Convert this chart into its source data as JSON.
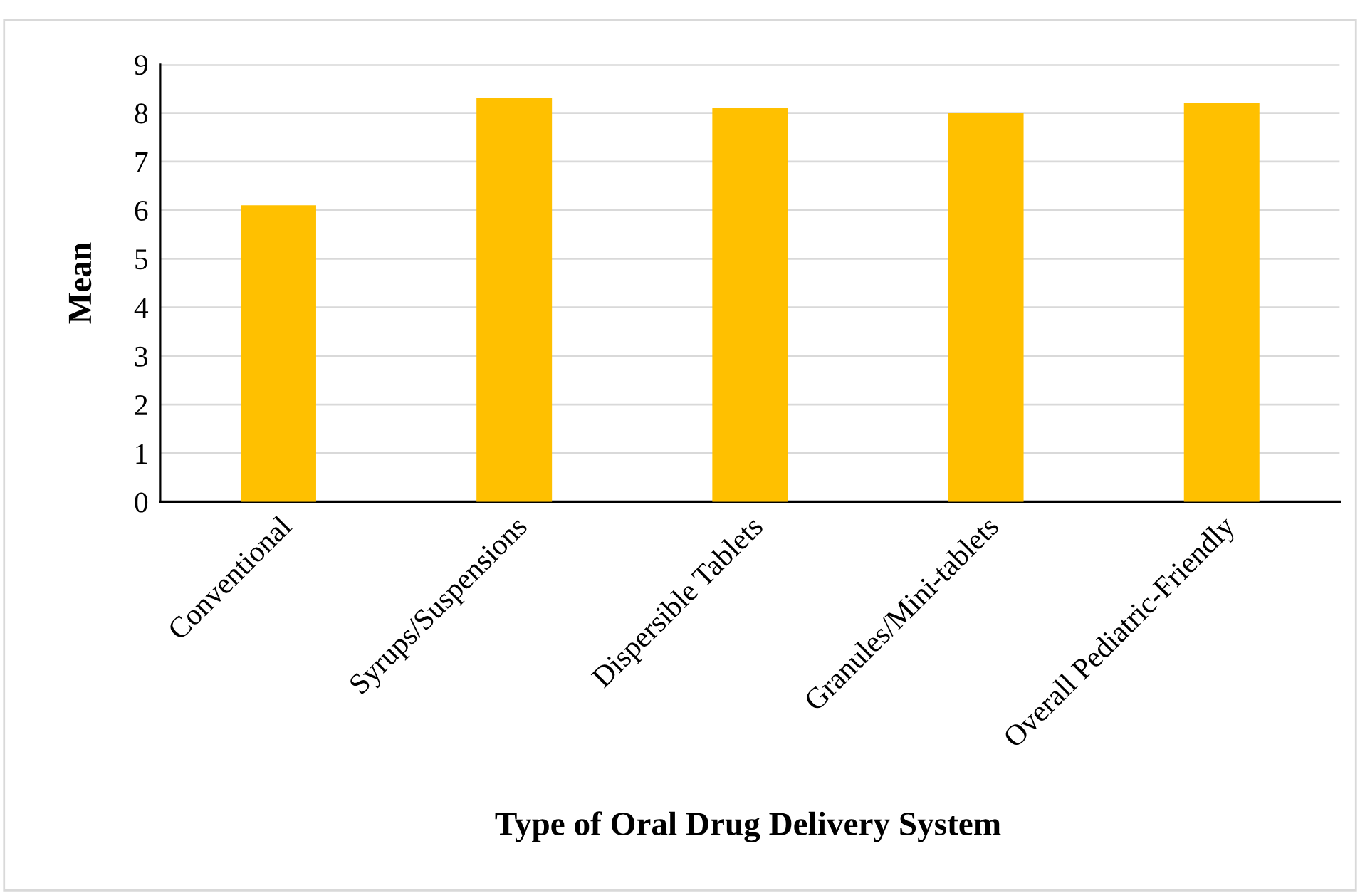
{
  "chart_data": {
    "type": "bar",
    "xlabel": "Type of Oral Drug Delivery System",
    "ylabel": "Mean",
    "categories": [
      "Conventional",
      "Syrups/Suspensions",
      "Dispersible Tablets",
      "Granules/Mini-tablets",
      "Overall Pediatric-Friendly"
    ],
    "values": [
      6.1,
      8.3,
      8.1,
      8.0,
      8.2
    ],
    "color": "#ffc000",
    "ylim": [
      0,
      9
    ],
    "yticks": [
      0,
      1,
      2,
      3,
      4,
      5,
      6,
      7,
      8,
      9
    ],
    "grid": "y",
    "legend": false
  }
}
